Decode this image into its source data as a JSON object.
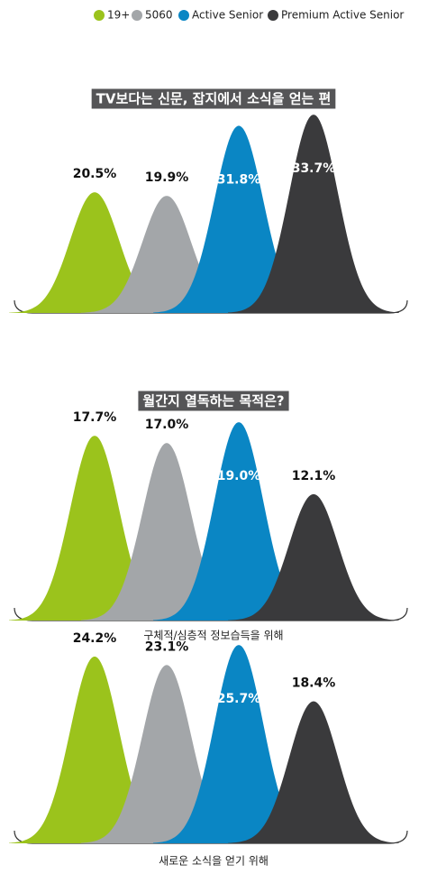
{
  "legend": [
    {
      "name": "19+",
      "color": "#9bc31c"
    },
    {
      "name": "5060",
      "color": "#a3a6a9"
    },
    {
      "name": "Active Senior",
      "color": "#0a86c4"
    },
    {
      "name": "Premium Active Senior",
      "color": "#3a3a3c"
    }
  ],
  "chart_data": [
    {
      "type": "bell",
      "title": "TV보다는 신문, 잡지에서 소식을 얻는 편",
      "values": [
        20.5,
        19.9,
        31.8,
        33.7
      ],
      "value_labels": [
        "20.5%",
        "19.9%",
        "31.8%",
        "33.7%"
      ]
    },
    {
      "type": "bell",
      "title": "월간지 열독하는 목적은?",
      "values": [
        17.7,
        17.0,
        19.0,
        12.1
      ],
      "value_labels": [
        "17.7%",
        "17.0%",
        "19.0%",
        "12.1%"
      ],
      "caption": "구체적/심층적 정보습득을 위해"
    },
    {
      "type": "bell",
      "values": [
        24.2,
        23.1,
        25.7,
        18.4
      ],
      "value_labels": [
        "24.2%",
        "23.1%",
        "25.7%",
        "18.4%"
      ],
      "caption": "새로운 소식을 얻기 위해"
    }
  ]
}
